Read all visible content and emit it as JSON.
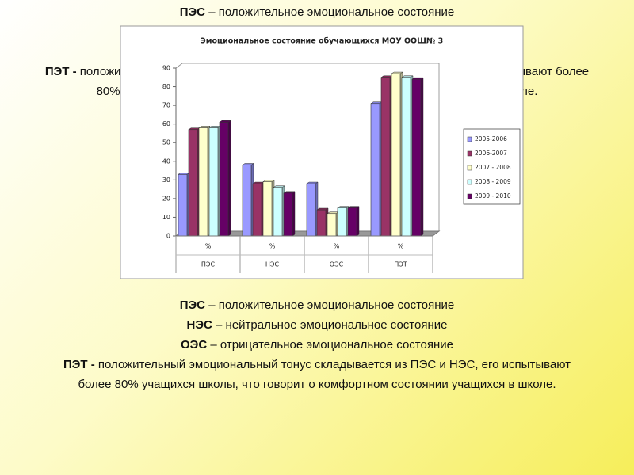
{
  "definitions": [
    {
      "term": "ПЭС",
      "text": "– положительное эмоциональное состояние"
    },
    {
      "term": "НЭС",
      "text": "– нейтральное эмоциональное состояние"
    },
    {
      "term": "ОЭС",
      "text": "– отрицательное эмоциональное состояние"
    },
    {
      "term": "ПЭТ -",
      "text": "положительный эмоциональный тонус складывается из ПЭС и НЭС, его испытывают более  80% учащихся школы, что говорит о комфортном состоянии учащихся в школе."
    }
  ],
  "chart_data": {
    "type": "bar",
    "title": "Эмоциональное состояние обучающихся МОУ ООШ№ 3",
    "categories": [
      "%",
      "%",
      "%",
      "%"
    ],
    "category_groups": [
      "ПЭС",
      "НЭС",
      "ОЭС",
      "ПЭТ"
    ],
    "series": [
      {
        "name": "2005-2006",
        "color": "#9999ff",
        "values": [
          33,
          38,
          28,
          71
        ]
      },
      {
        "name": "2006-2007",
        "color": "#993366",
        "values": [
          57,
          28,
          14,
          85
        ]
      },
      {
        "name": "2007 - 2008",
        "color": "#ffffcc",
        "values": [
          58,
          29,
          12,
          87
        ]
      },
      {
        "name": "2008 - 2009",
        "color": "#ccffff",
        "values": [
          58,
          26,
          15,
          85
        ]
      },
      {
        "name": "2009 - 2010",
        "color": "#660066",
        "values": [
          61,
          23,
          15,
          84
        ]
      }
    ],
    "ylim": [
      0,
      90
    ],
    "yticks": [
      0,
      10,
      20,
      30,
      40,
      50,
      60,
      70,
      80,
      90
    ],
    "legend": "right"
  }
}
